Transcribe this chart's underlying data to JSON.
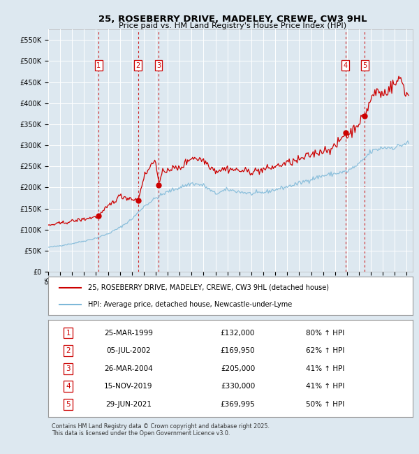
{
  "title": "25, ROSEBERRY DRIVE, MADELEY, CREWE, CW3 9HL",
  "subtitle": "Price paid vs. HM Land Registry's House Price Index (HPI)",
  "title_fontsize": 10,
  "subtitle_fontsize": 8.5,
  "bg_color": "#dde8f0",
  "plot_bg_color": "#dde8f0",
  "grid_color": "#ffffff",
  "sale_color": "#cc0000",
  "hpi_color": "#7db8d8",
  "ylim": [
    0,
    575000
  ],
  "yticks": [
    0,
    50000,
    100000,
    150000,
    200000,
    250000,
    300000,
    350000,
    400000,
    450000,
    500000,
    550000
  ],
  "ytick_labels": [
    "£0",
    "£50K",
    "£100K",
    "£150K",
    "£200K",
    "£250K",
    "£300K",
    "£350K",
    "£400K",
    "£450K",
    "£500K",
    "£550K"
  ],
  "xlim_start": 1995.0,
  "xlim_end": 2025.5,
  "sales": [
    {
      "num": 1,
      "date": "25-MAR-1999",
      "year": 1999.23,
      "price": 132000,
      "label": "£132,000",
      "pct": "80%"
    },
    {
      "num": 2,
      "date": "05-JUL-2002",
      "year": 2002.51,
      "price": 169950,
      "label": "£169,950",
      "pct": "62%"
    },
    {
      "num": 3,
      "date": "26-MAR-2004",
      "year": 2004.23,
      "price": 205000,
      "label": "£205,000",
      "pct": "41%"
    },
    {
      "num": 4,
      "date": "15-NOV-2019",
      "year": 2019.87,
      "price": 330000,
      "label": "£330,000",
      "pct": "41%"
    },
    {
      "num": 5,
      "date": "29-JUN-2021",
      "year": 2021.49,
      "price": 369995,
      "label": "£369,995",
      "pct": "50%"
    }
  ],
  "legend_label_red": "25, ROSEBERRY DRIVE, MADELEY, CREWE, CW3 9HL (detached house)",
  "legend_label_blue": "HPI: Average price, detached house, Newcastle-under-Lyme",
  "footnote": "Contains HM Land Registry data © Crown copyright and database right 2025.\nThis data is licensed under the Open Government Licence v3.0."
}
